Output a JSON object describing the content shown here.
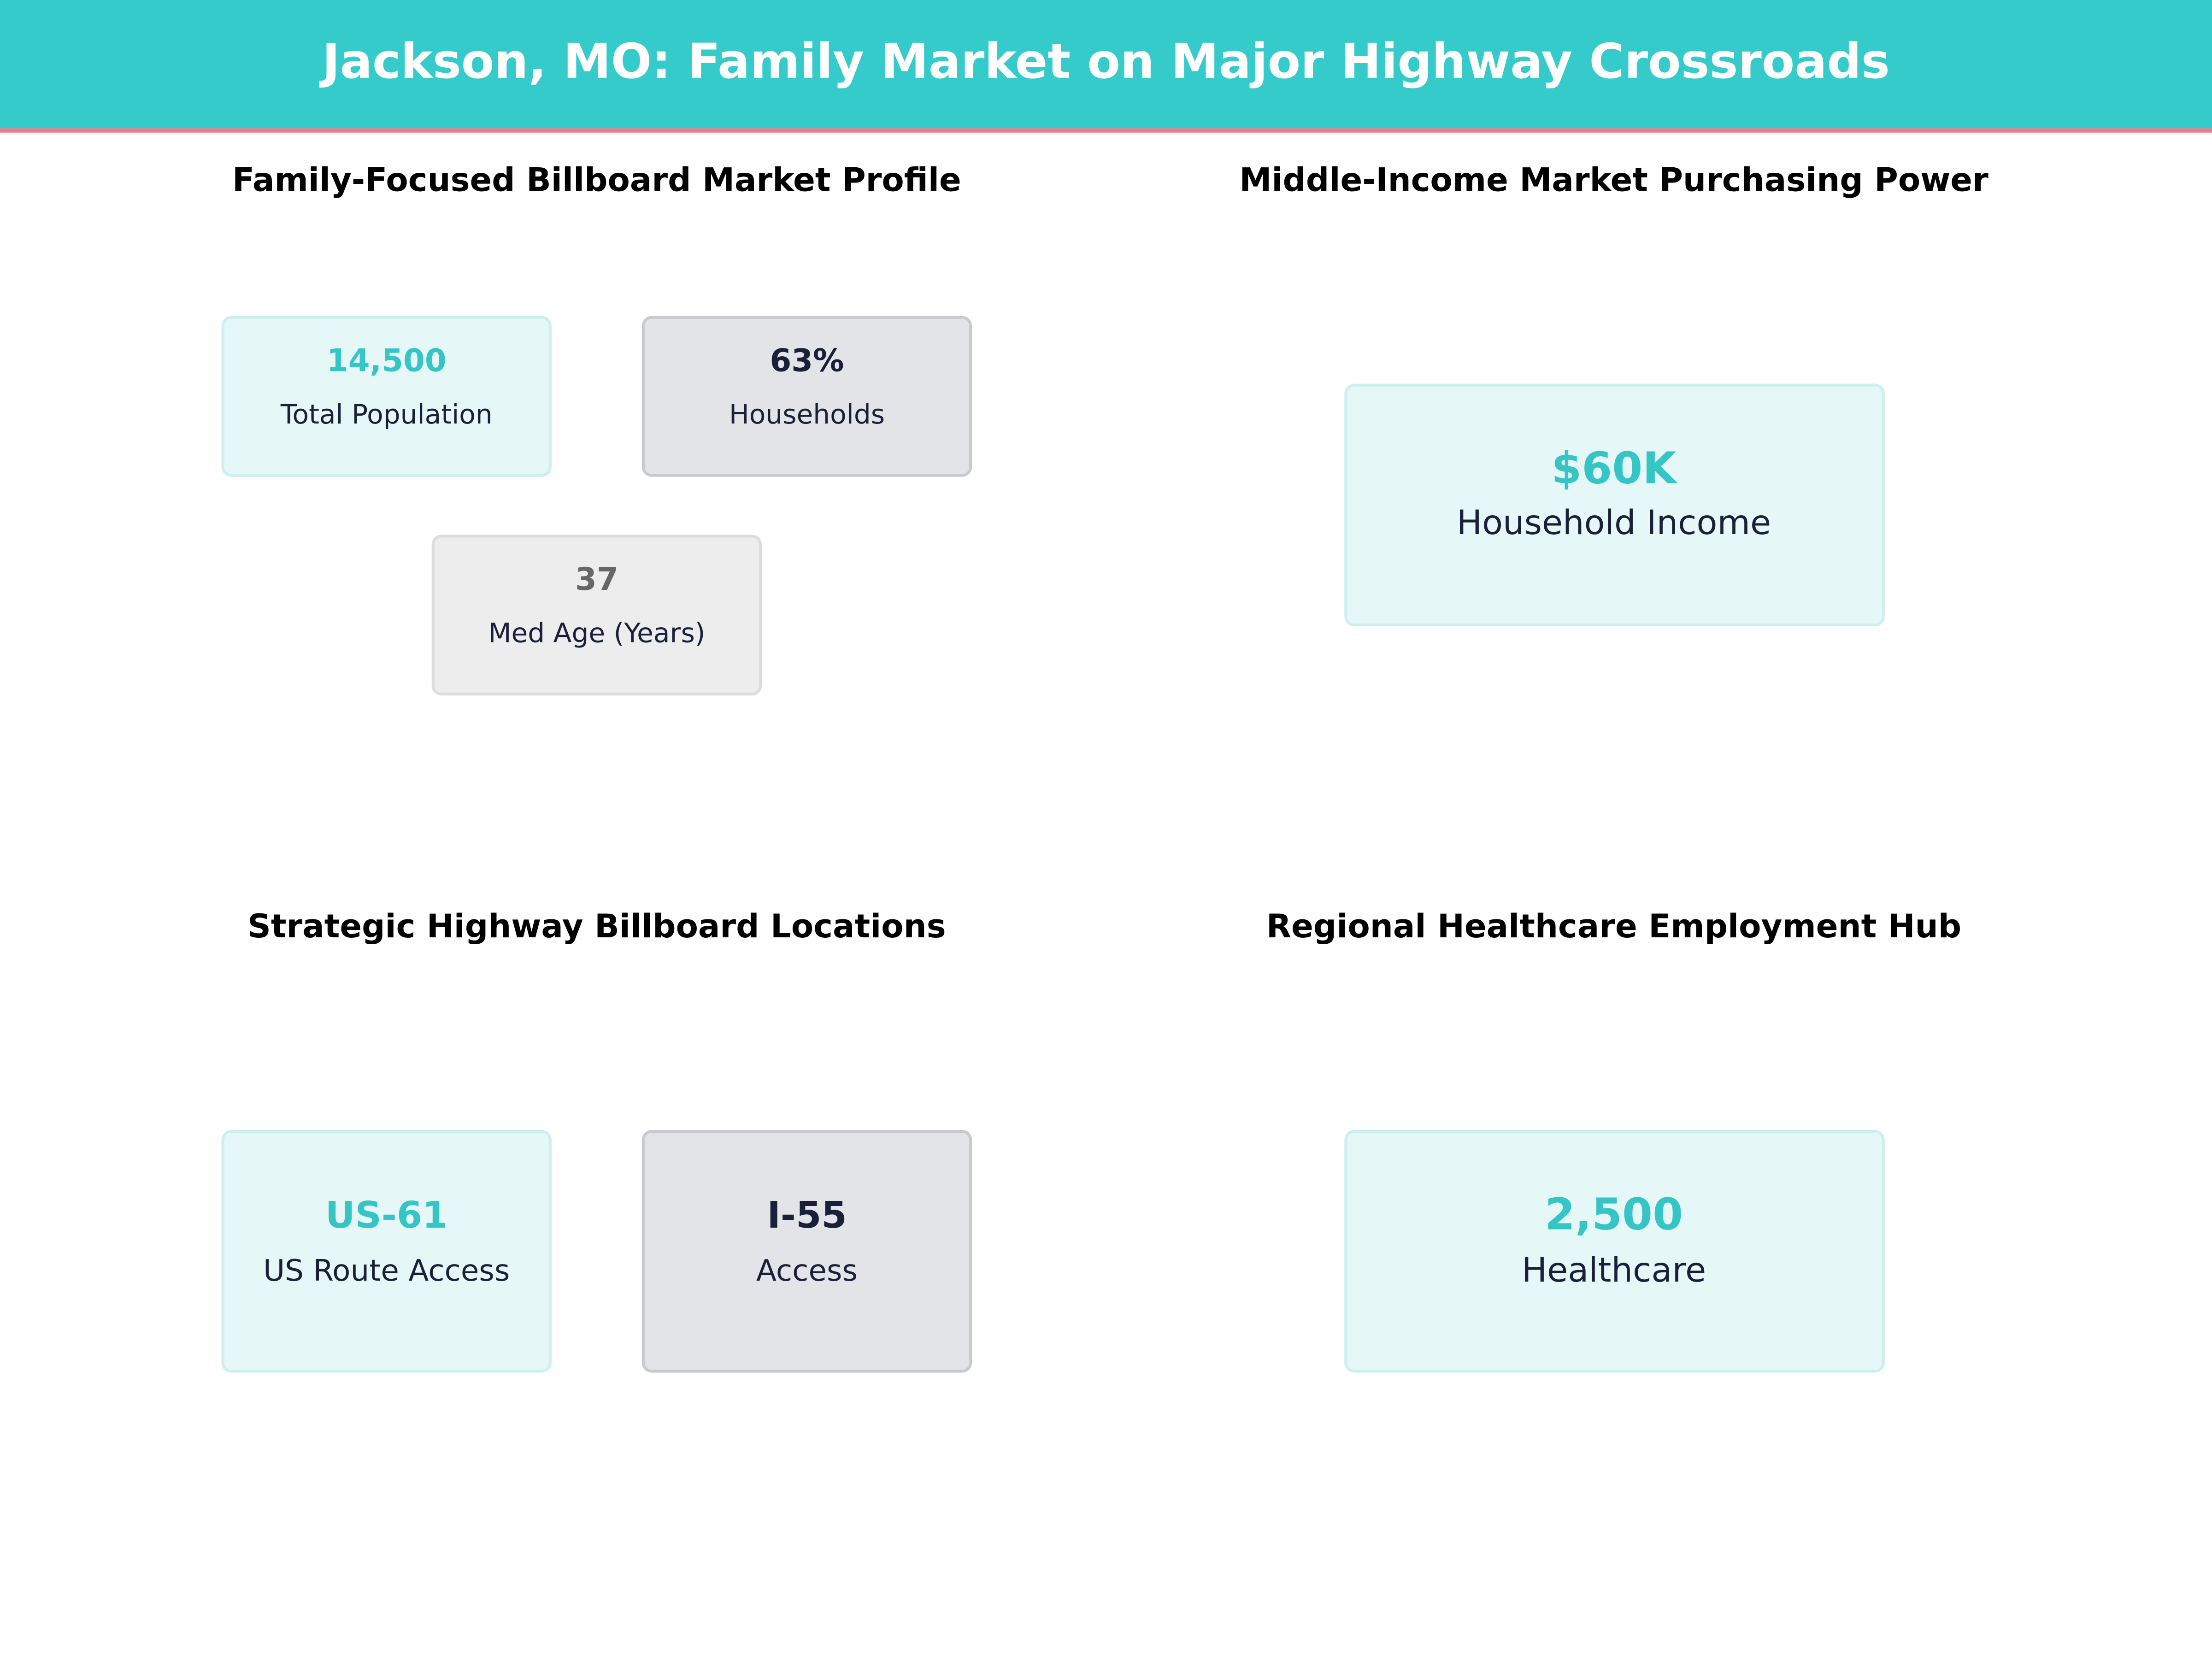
{
  "header": {
    "title": "Jackson, MO: Family Market on Major Highway Crossroads"
  },
  "panels": [
    {
      "title": "Family-Focused Billboard Market Profile",
      "cards": [
        {
          "value": "14,500",
          "label": "Total Population"
        },
        {
          "value": "63%",
          "label": "Households"
        },
        {
          "value": "37",
          "label": "Med Age (Years)"
        }
      ]
    },
    {
      "title": "Middle-Income Market Purchasing Power",
      "cards": [
        {
          "value": "$60K",
          "label": "Household Income"
        }
      ]
    },
    {
      "title": "Strategic Highway Billboard Locations",
      "cards": [
        {
          "value": "US-61",
          "label": "US Route Access"
        },
        {
          "value": "I-55",
          "label": "Access"
        }
      ]
    },
    {
      "title": "Regional Healthcare Employment Hub",
      "cards": [
        {
          "value": "2,500",
          "label": "Healthcare"
        }
      ]
    }
  ]
}
